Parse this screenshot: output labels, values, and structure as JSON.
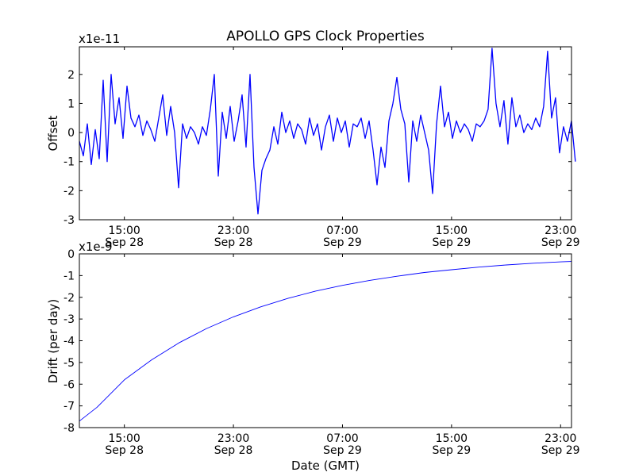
{
  "chart_data": [
    {
      "type": "line",
      "title": "APOLLO GPS Clock Properties",
      "ylabel": "Offset",
      "xlabel": "",
      "scale_label": "x1e-11",
      "x_units": "hours relative to 15:00 Sep 28 (GMT)",
      "xlim": [
        -3.3,
        32.8
      ],
      "ylim": [
        -3,
        2.95
      ],
      "yticks": [
        -3,
        -2,
        -1,
        0,
        1,
        2
      ],
      "ytick_labels": [
        "-3",
        "-2",
        "-1",
        "0",
        "1",
        "2"
      ],
      "xticks": [
        0,
        8,
        16,
        24,
        32
      ],
      "xtick_labels": [
        [
          "15:00",
          "Sep 28"
        ],
        [
          "23:00",
          "Sep 28"
        ],
        [
          "07:00",
          "Sep 29"
        ],
        [
          "15:00",
          "Sep 29"
        ],
        [
          "23:00",
          "Sep 29"
        ]
      ],
      "series": [
        {
          "name": "Offset",
          "color": "#0000ff",
          "x_start": -3.3,
          "x_step": 0.2911,
          "values": [
            -0.3,
            -0.8,
            0.3,
            -1.1,
            0.1,
            -0.9,
            1.8,
            -1.0,
            2.0,
            0.3,
            1.2,
            -0.2,
            1.6,
            0.5,
            0.2,
            0.6,
            -0.1,
            0.4,
            0.1,
            -0.3,
            0.5,
            1.3,
            -0.1,
            0.9,
            0.0,
            -1.9,
            0.3,
            -0.2,
            0.2,
            0.0,
            -0.4,
            0.2,
            -0.1,
            0.8,
            2.0,
            -1.5,
            0.7,
            -0.2,
            0.9,
            -0.3,
            0.4,
            1.3,
            -0.5,
            2.0,
            -1.2,
            -2.8,
            -1.3,
            -0.9,
            -0.6,
            0.2,
            -0.4,
            0.7,
            0.0,
            0.4,
            -0.2,
            0.3,
            0.1,
            -0.4,
            0.5,
            -0.1,
            0.3,
            -0.6,
            0.2,
            0.6,
            -0.3,
            0.5,
            0.0,
            0.4,
            -0.5,
            0.3,
            0.2,
            0.5,
            -0.2,
            0.4,
            -0.6,
            -1.8,
            -0.5,
            -1.2,
            0.4,
            1.0,
            1.9,
            0.8,
            0.3,
            -1.7,
            0.4,
            -0.3,
            0.6,
            0.0,
            -0.6,
            -2.1,
            0.3,
            1.6,
            0.2,
            0.7,
            -0.2,
            0.4,
            0.0,
            0.3,
            0.1,
            -0.3,
            0.3,
            0.2,
            0.4,
            0.8,
            2.9,
            1.0,
            0.2,
            1.1,
            -0.4,
            1.2,
            0.2,
            0.6,
            0.0,
            0.3,
            0.1,
            0.5,
            0.2,
            0.9,
            2.8,
            0.5,
            1.2,
            -0.7,
            0.2,
            -0.3,
            0.4,
            -1.0
          ]
        }
      ]
    },
    {
      "type": "line",
      "title": "",
      "ylabel": "Drift (per day)",
      "xlabel": "Date (GMT)",
      "scale_label": "x1e-9",
      "x_units": "hours relative to 15:00 Sep 28 (GMT)",
      "xlim": [
        -3.3,
        32.8
      ],
      "ylim": [
        -8,
        0
      ],
      "yticks": [
        -8,
        -7,
        -6,
        -5,
        -4,
        -3,
        -2,
        -1,
        0
      ],
      "ytick_labels": [
        "-8",
        "-7",
        "-6",
        "-5",
        "-4",
        "-3",
        "-2",
        "-1",
        "0"
      ],
      "xticks": [
        0,
        8,
        16,
        24,
        32
      ],
      "xtick_labels": [
        [
          "15:00",
          "Sep 28"
        ],
        [
          "23:00",
          "Sep 28"
        ],
        [
          "07:00",
          "Sep 29"
        ],
        [
          "15:00",
          "Sep 29"
        ],
        [
          "23:00",
          "Sep 29"
        ]
      ],
      "series": [
        {
          "name": "Drift",
          "color": "#0000ff",
          "x": [
            -3.3,
            -2,
            0,
            2,
            4,
            6,
            8,
            10,
            12,
            14,
            16,
            18,
            20,
            22,
            24,
            26,
            28,
            30,
            32,
            32.8
          ],
          "values": [
            -7.7,
            -7.06,
            -5.8,
            -4.88,
            -4.1,
            -3.45,
            -2.9,
            -2.44,
            -2.05,
            -1.72,
            -1.45,
            -1.22,
            -1.03,
            -0.86,
            -0.73,
            -0.61,
            -0.51,
            -0.43,
            -0.37,
            -0.35
          ]
        }
      ]
    }
  ]
}
